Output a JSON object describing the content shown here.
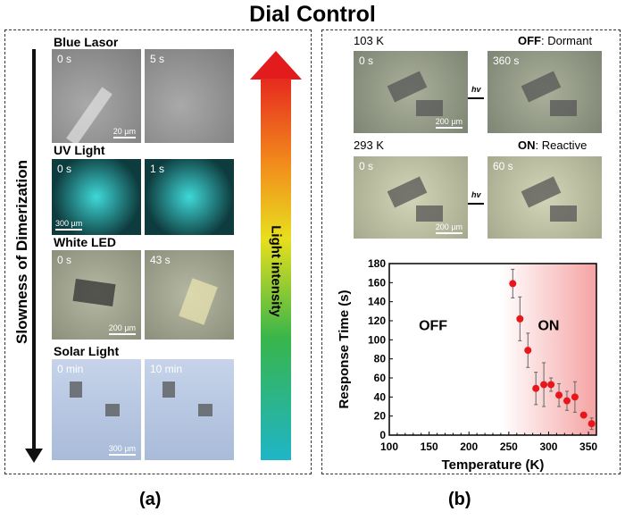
{
  "title": "Dial Control",
  "panel_a": {
    "caption": "(a)",
    "y_arrow_label": "Slowness of Dimerization",
    "intensity_label": "Light intensity",
    "rows": [
      {
        "label": "Blue Lasor",
        "t0": "0 s",
        "t1": "5 s",
        "scale": "20 µm"
      },
      {
        "label": "UV Light",
        "t0": "0 s",
        "t1": "1 s",
        "scale": "300 µm"
      },
      {
        "label": "White LED",
        "t0": "0 s",
        "t1": "43 s",
        "scale": "200 µm"
      },
      {
        "label": "Solar Light",
        "t0": "0 min",
        "t1": "10 min",
        "scale": "300 µm"
      }
    ]
  },
  "panel_b": {
    "caption": "(b)",
    "rows": [
      {
        "temp": "103 K",
        "state": "OFF",
        "state_desc": ": Dormant",
        "t0": "0 s",
        "t1": "360 s",
        "scale": "200 µm",
        "arrow": "hv"
      },
      {
        "temp": "293 K",
        "state": "ON",
        "state_desc": ": Reactive",
        "t0": "0 s",
        "t1": "60 s",
        "scale": "200 µm",
        "arrow": "hv"
      }
    ]
  },
  "chart_data": {
    "type": "scatter",
    "xlabel": "Temperature (K)",
    "ylabel": "Response Time (s)",
    "xlim": [
      100,
      360
    ],
    "ylim": [
      0,
      180
    ],
    "xticks": [
      100,
      150,
      200,
      250,
      300,
      350
    ],
    "yticks": [
      0,
      20,
      40,
      60,
      80,
      100,
      120,
      140,
      160,
      180
    ],
    "annotations": [
      "OFF",
      "ON"
    ],
    "shaded_region_start": 240,
    "marker_color": "#e8161b",
    "x": [
      255,
      264,
      274,
      284,
      294,
      303,
      313,
      323,
      333,
      344,
      354
    ],
    "y": [
      159,
      122,
      89,
      49,
      53,
      53,
      42,
      36,
      40,
      21,
      12
    ],
    "yerr": [
      15,
      23,
      18,
      17,
      23,
      7,
      12,
      10,
      16,
      2,
      6
    ]
  }
}
